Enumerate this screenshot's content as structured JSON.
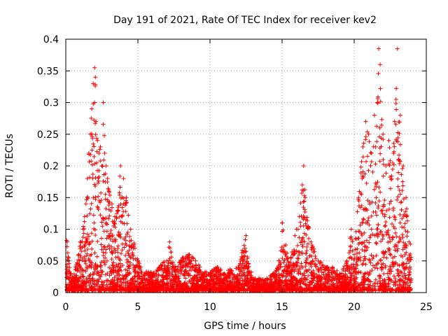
{
  "chart_data": {
    "type": "scatter",
    "title": "Day 191 of 2021, Rate Of TEC Index for receiver kev2",
    "xlabel": "GPS time / hours",
    "ylabel": "ROTI / TECUs",
    "xlim": [
      0,
      25
    ],
    "ylim": [
      0,
      0.4
    ],
    "x_ticks": [
      "0",
      "5",
      "10",
      "15",
      "20",
      "25"
    ],
    "y_ticks": [
      "0",
      "0.05",
      "0.1",
      "0.15",
      "0.2",
      "0.25",
      "0.3",
      "0.35",
      "0.4"
    ],
    "grid": true,
    "legend": "none",
    "marker": "plus",
    "color": "#ff0000",
    "series": [
      {
        "x": [
          0.1,
          0.2,
          0.3,
          0.5,
          0.7,
          0.9,
          1.0,
          1.2,
          1.3,
          1.4,
          1.5,
          1.6,
          1.7,
          1.8,
          1.9,
          2.0,
          2.0,
          2.05,
          2.1,
          2.2,
          2.3,
          2.4,
          2.5,
          2.6,
          2.7,
          2.8,
          2.9,
          3.0,
          3.2,
          3.4,
          3.6,
          3.8,
          4.0,
          4.2,
          4.5,
          4.8,
          5.0,
          5.2,
          5.5,
          6.0,
          6.5,
          7.0,
          7.2,
          7.5,
          8.0,
          8.5,
          9.0,
          9.5,
          10.0,
          10.5,
          11.0,
          11.5,
          12.0,
          12.5,
          12.5,
          13.0,
          13.5,
          14.0,
          14.5,
          14.8,
          15.0,
          15.5,
          16.0,
          16.2,
          16.4,
          16.5,
          16.6,
          17.0,
          17.5,
          18.0,
          18.5,
          19.0,
          19.5,
          19.8,
          20.0,
          20.3,
          20.6,
          20.8,
          21.0,
          21.2,
          21.4,
          21.6,
          21.7,
          21.8,
          22.0,
          22.2,
          22.4,
          22.6,
          22.8,
          22.9,
          23.0,
          23.2,
          23.4,
          23.6,
          23.8
        ],
        "y": [
          0.08,
          0.05,
          0.03,
          0.02,
          0.04,
          0.06,
          0.08,
          0.1,
          0.12,
          0.14,
          0.18,
          0.22,
          0.25,
          0.29,
          0.33,
          0.355,
          0.3,
          0.34,
          0.27,
          0.24,
          0.22,
          0.23,
          0.2,
          0.3,
          0.22,
          0.2,
          0.18,
          0.16,
          0.14,
          0.12,
          0.13,
          0.2,
          0.18,
          0.15,
          0.1,
          0.07,
          0.05,
          0.04,
          0.03,
          0.03,
          0.04,
          0.05,
          0.08,
          0.04,
          0.05,
          0.06,
          0.05,
          0.03,
          0.03,
          0.04,
          0.03,
          0.035,
          0.04,
          0.09,
          0.065,
          0.02,
          0.02,
          0.02,
          0.03,
          0.05,
          0.11,
          0.04,
          0.1,
          0.12,
          0.17,
          0.2,
          0.15,
          0.08,
          0.05,
          0.04,
          0.04,
          0.03,
          0.05,
          0.1,
          0.06,
          0.15,
          0.23,
          0.27,
          0.25,
          0.22,
          0.28,
          0.3,
          0.385,
          0.36,
          0.25,
          0.2,
          0.24,
          0.18,
          0.27,
          0.305,
          0.385,
          0.28,
          0.2,
          0.15,
          0.08
        ]
      }
    ]
  }
}
